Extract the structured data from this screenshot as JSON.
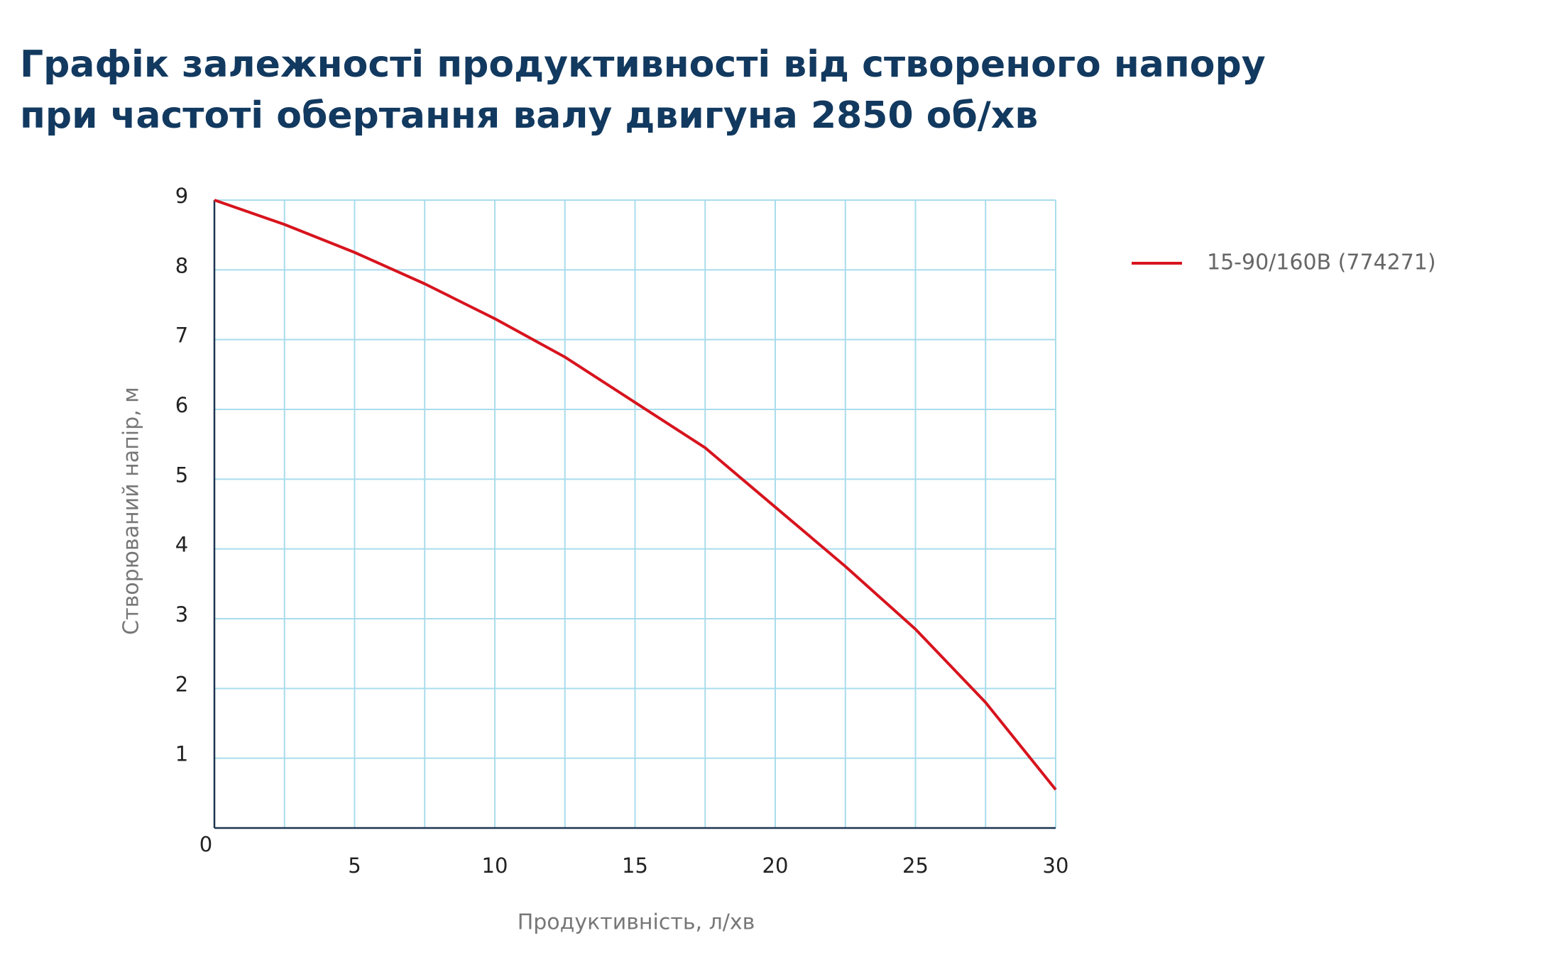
{
  "chart_data": {
    "type": "line",
    "title": [
      "Графік залежності продуктивності від створеного напору",
      "при частоті обертання валу двигуна 2850 об/хв"
    ],
    "x_label": "Продуктивність, л/хв",
    "y_label": "Створюваний напір, м",
    "x": [
      0,
      2.5,
      5,
      7.5,
      10,
      12.5,
      15,
      17.5,
      20,
      22.5,
      25,
      27.5,
      30
    ],
    "series": [
      {
        "name": "15-90/160B (774271)",
        "color": "#d7141e",
        "values": [
          9.0,
          8.65,
          8.25,
          7.8,
          7.3,
          6.75,
          6.1,
          5.45,
          4.6,
          3.75,
          2.85,
          1.8,
          0.55
        ]
      }
    ],
    "xlim": [
      0,
      30
    ],
    "ylim": [
      0,
      9
    ],
    "xticks": [
      5,
      10,
      15,
      20,
      25,
      30
    ],
    "x_minor_ticks": [
      2.5,
      7.5,
      12.5,
      17.5,
      22.5,
      27.5
    ],
    "yticks": [
      0,
      1,
      2,
      3,
      4,
      5,
      6,
      7,
      8,
      9
    ],
    "grid": true,
    "grid_color": "#a9dcec",
    "legend": "right"
  }
}
